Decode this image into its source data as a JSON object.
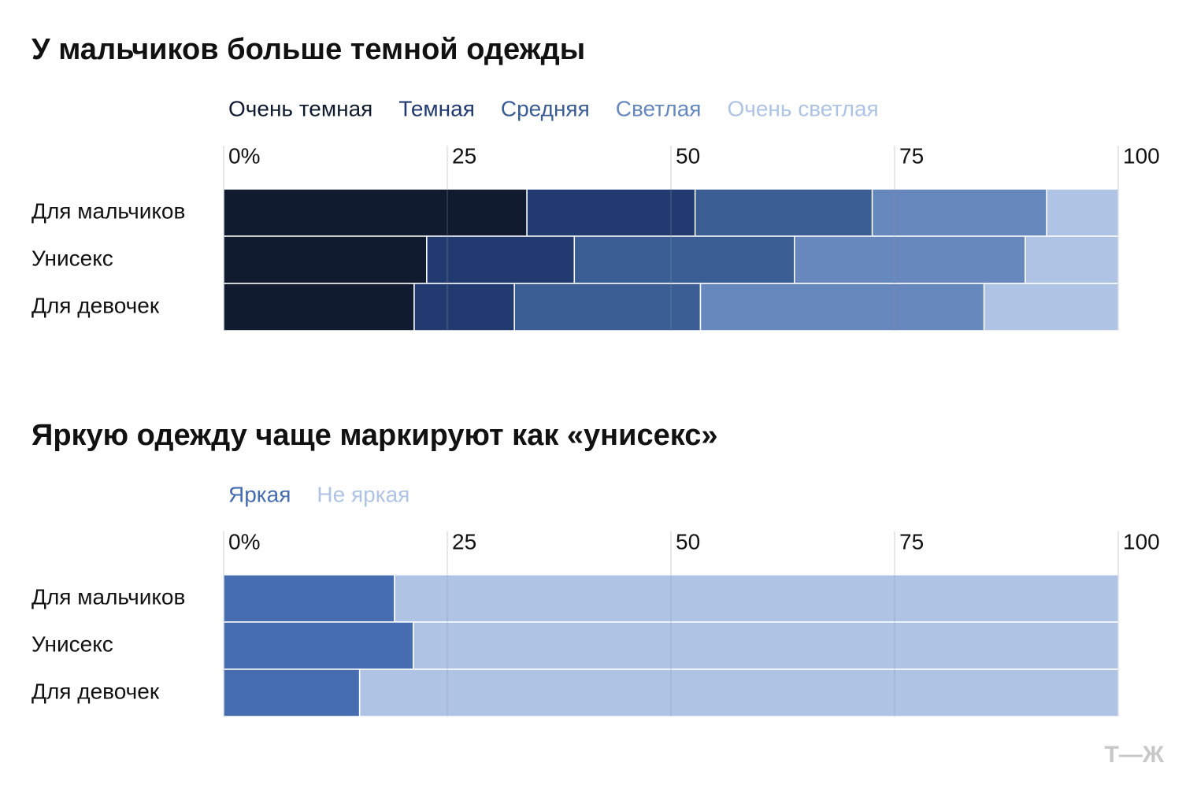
{
  "chart_data": [
    {
      "type": "bar",
      "stacked": true,
      "orientation": "horizontal",
      "title": "У мальчиков больше темной одежды",
      "categories": [
        "Для мальчиков",
        "Унисекс",
        "Для девочек"
      ],
      "series": [
        {
          "name": "Очень темная",
          "color": "#101b2f",
          "values": [
            33.9,
            22.7,
            21.3
          ]
        },
        {
          "name": "Темная",
          "color": "#213a70",
          "values": [
            18.8,
            16.5,
            11.2
          ]
        },
        {
          "name": "Средняя",
          "color": "#3a5d93",
          "values": [
            19.8,
            24.6,
            20.8
          ]
        },
        {
          "name": "Светлая",
          "color": "#6788bd",
          "values": [
            19.5,
            25.8,
            31.7
          ]
        },
        {
          "name": "Очень светлая",
          "color": "#afc4e5",
          "values": [
            8.0,
            10.4,
            15.0
          ]
        }
      ],
      "xlim": [
        0,
        100
      ],
      "xticks": [
        {
          "value": 0,
          "label": "0%"
        },
        25,
        50,
        75,
        100
      ],
      "grid": true
    },
    {
      "type": "bar",
      "stacked": true,
      "orientation": "horizontal",
      "title": "Яркую одежду чаще маркируют как «унисекс»",
      "categories": [
        "Для мальчиков",
        "Унисекс",
        "Для девочек"
      ],
      "series": [
        {
          "name": "Яркая",
          "color": "#466daf",
          "values": [
            19.1,
            21.2,
            15.2
          ]
        },
        {
          "name": "Не яркая",
          "color": "#afc4e5",
          "values": [
            80.9,
            78.8,
            84.8
          ]
        }
      ],
      "xlim": [
        0,
        100
      ],
      "xticks": [
        {
          "value": 0,
          "label": "0%"
        },
        25,
        50,
        75,
        100
      ],
      "grid": true
    }
  ],
  "logo": "Т—Ж"
}
